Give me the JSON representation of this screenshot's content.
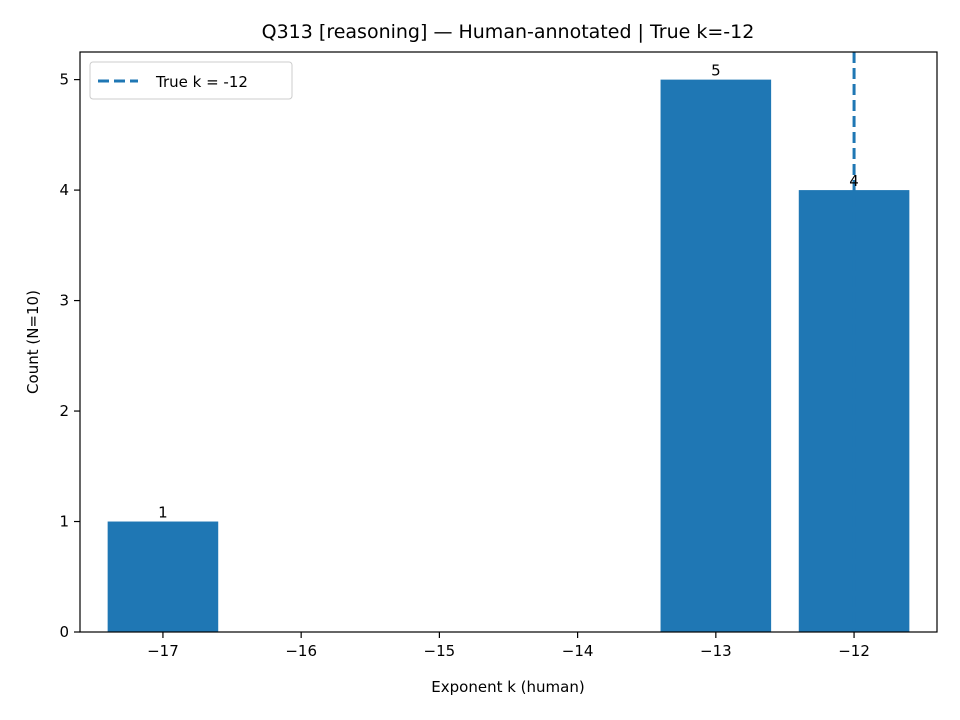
{
  "chart_data": {
    "type": "bar",
    "title": "Q313 [reasoning] — Human-annotated | True k=-12",
    "xlabel": "Exponent k (human)",
    "ylabel": "Count (N=10)",
    "x": [
      -17,
      -13,
      -12
    ],
    "values": [
      1,
      5,
      4
    ],
    "data_labels": [
      "1",
      "5",
      "4"
    ],
    "xlim": [
      -17.6,
      -11.4
    ],
    "ylim": [
      0,
      5.25
    ],
    "xticks": [
      -17,
      -16,
      -15,
      -14,
      -13,
      -12
    ],
    "xtick_labels": [
      "−17",
      "−16",
      "−15",
      "−14",
      "−13",
      "−12"
    ],
    "yticks": [
      0,
      1,
      2,
      3,
      4,
      5
    ],
    "ytick_labels": [
      "0",
      "1",
      "2",
      "3",
      "4",
      "5"
    ],
    "bar_width": 0.8,
    "bar_color": "#1f77b4",
    "reference_line": {
      "x": -12,
      "style": "dashed",
      "color": "#1f77b4",
      "label": "True k = -12"
    },
    "legend": {
      "position": "top-left",
      "entries": [
        "True k = -12"
      ]
    },
    "grid": false
  }
}
